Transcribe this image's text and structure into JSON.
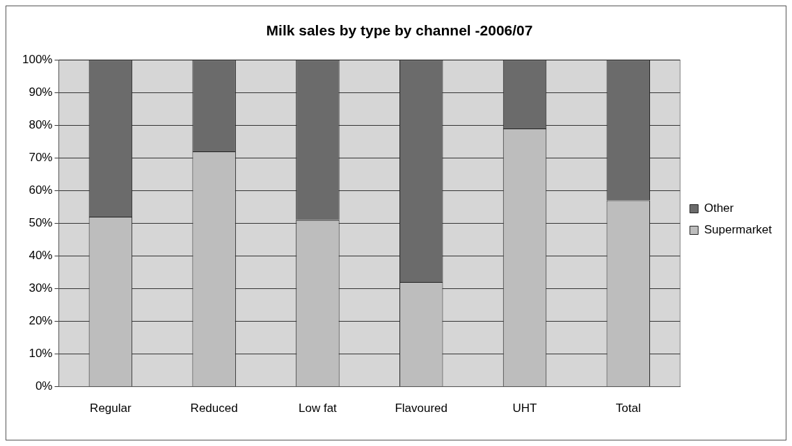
{
  "chart_data": {
    "type": "bar",
    "title": "Milk sales by type by channel -2006/07",
    "categories": [
      "Regular",
      "Reduced",
      "Low fat",
      "Flavoured",
      "UHT",
      "Total"
    ],
    "stacked": true,
    "series": [
      {
        "name": "Supermarket",
        "color": "#bdbdbd",
        "values": [
          52,
          72,
          51,
          32,
          79,
          57
        ]
      },
      {
        "name": "Other",
        "color": "#6b6b6b",
        "values": [
          48,
          28,
          49,
          68,
          21,
          43
        ]
      }
    ],
    "ylim": [
      0,
      100
    ],
    "yticks": [
      {
        "value": 0,
        "label": "0%"
      },
      {
        "value": 10,
        "label": "10%"
      },
      {
        "value": 20,
        "label": "20%"
      },
      {
        "value": 30,
        "label": "30%"
      },
      {
        "value": 40,
        "label": "40%"
      },
      {
        "value": 50,
        "label": "50%"
      },
      {
        "value": 60,
        "label": "60%"
      },
      {
        "value": 70,
        "label": "70%"
      },
      {
        "value": 80,
        "label": "80%"
      },
      {
        "value": 90,
        "label": "90%"
      },
      {
        "value": 100,
        "label": "100%"
      }
    ],
    "grid": "y",
    "legend": "right"
  }
}
